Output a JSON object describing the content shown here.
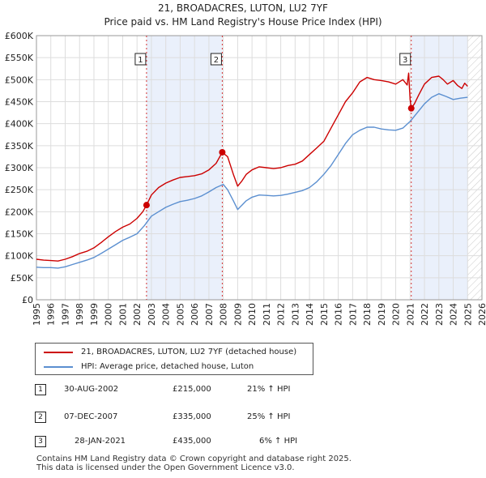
{
  "chart_data": {
    "type": "line",
    "title": "21, BROADACRES, LUTON, LU2 7YF",
    "subtitle": "Price paid vs. HM Land Registry's House Price Index (HPI)",
    "xlabel": "",
    "ylabel": "",
    "xlim": [
      1995,
      2026
    ],
    "ylim": [
      0,
      600000
    ],
    "x_ticks": [
      1995,
      1996,
      1997,
      1998,
      1999,
      2000,
      2001,
      2002,
      2003,
      2004,
      2005,
      2006,
      2007,
      2008,
      2009,
      2010,
      2011,
      2012,
      2013,
      2014,
      2015,
      2016,
      2017,
      2018,
      2019,
      2020,
      2021,
      2022,
      2023,
      2024,
      2025,
      2026
    ],
    "y_ticks": [
      0,
      50000,
      100000,
      150000,
      200000,
      250000,
      300000,
      350000,
      400000,
      450000,
      500000,
      550000,
      600000
    ],
    "y_tick_labels": [
      "£0",
      "£50K",
      "£100K",
      "£150K",
      "£200K",
      "£250K",
      "£300K",
      "£350K",
      "£400K",
      "£450K",
      "£500K",
      "£550K",
      "£600K"
    ],
    "shaded_regions": [
      [
        2002.66,
        2007.93
      ],
      [
        2021.08,
        2025.0
      ]
    ],
    "future_hatch_from": 2025.0,
    "series": [
      {
        "name": "21, BROADACRES, LUTON, LU2 7YF (detached house)",
        "color": "#cc0000",
        "x": [
          1995.0,
          1995.5,
          1996.0,
          1996.5,
          1997.0,
          1997.5,
          1998.0,
          1998.5,
          1999.0,
          1999.5,
          2000.0,
          2000.5,
          2001.0,
          2001.5,
          2002.0,
          2002.4,
          2002.66,
          2003.0,
          2003.5,
          2004.0,
          2004.5,
          2005.0,
          2005.5,
          2006.0,
          2006.5,
          2007.0,
          2007.5,
          2007.93,
          2008.3,
          2008.7,
          2009.0,
          2009.3,
          2009.6,
          2010.0,
          2010.5,
          2011.0,
          2011.5,
          2012.0,
          2012.5,
          2013.0,
          2013.5,
          2014.0,
          2014.5,
          2015.0,
          2015.5,
          2016.0,
          2016.5,
          2017.0,
          2017.5,
          2018.0,
          2018.5,
          2019.0,
          2019.5,
          2020.0,
          2020.5,
          2020.8,
          2020.9,
          2021.0,
          2021.08,
          2021.3,
          2021.6,
          2022.0,
          2022.5,
          2023.0,
          2023.3,
          2023.6,
          2024.0,
          2024.3,
          2024.6,
          2024.8,
          2025.0
        ],
        "values": [
          92000,
          90000,
          89000,
          88000,
          92000,
          98000,
          105000,
          110000,
          118000,
          130000,
          143000,
          155000,
          165000,
          172000,
          185000,
          200000,
          215000,
          238000,
          255000,
          265000,
          272000,
          278000,
          280000,
          282000,
          286000,
          295000,
          310000,
          335000,
          325000,
          285000,
          258000,
          270000,
          285000,
          295000,
          302000,
          300000,
          298000,
          300000,
          305000,
          308000,
          315000,
          330000,
          345000,
          360000,
          390000,
          420000,
          450000,
          470000,
          495000,
          505000,
          500000,
          498000,
          495000,
          490000,
          500000,
          488000,
          515000,
          455000,
          435000,
          445000,
          465000,
          490000,
          505000,
          508000,
          500000,
          490000,
          498000,
          487000,
          480000,
          492000,
          485000
        ],
        "markers": [
          {
            "x": 2002.66,
            "value": 215000,
            "label": "1"
          },
          {
            "x": 2007.93,
            "value": 335000,
            "label": "2"
          },
          {
            "x": 2021.08,
            "value": 435000,
            "label": "3"
          }
        ]
      },
      {
        "name": "HPI: Average price, detached house, Luton",
        "color": "#5b8fd0",
        "x": [
          1995.0,
          1995.5,
          1996.0,
          1996.5,
          1997.0,
          1997.5,
          1998.0,
          1998.5,
          1999.0,
          1999.5,
          2000.0,
          2000.5,
          2001.0,
          2001.5,
          2002.0,
          2002.5,
          2003.0,
          2003.5,
          2004.0,
          2004.5,
          2005.0,
          2005.5,
          2006.0,
          2006.5,
          2007.0,
          2007.5,
          2008.0,
          2008.3,
          2008.7,
          2009.0,
          2009.3,
          2009.6,
          2010.0,
          2010.5,
          2011.0,
          2011.5,
          2012.0,
          2012.5,
          2013.0,
          2013.5,
          2014.0,
          2014.5,
          2015.0,
          2015.5,
          2016.0,
          2016.5,
          2017.0,
          2017.5,
          2018.0,
          2018.5,
          2019.0,
          2019.5,
          2020.0,
          2020.5,
          2021.0,
          2021.5,
          2022.0,
          2022.5,
          2023.0,
          2023.5,
          2024.0,
          2024.5,
          2025.0
        ],
        "values": [
          74000,
          73000,
          73000,
          72000,
          75000,
          80000,
          85000,
          90000,
          96000,
          105000,
          115000,
          125000,
          135000,
          142000,
          150000,
          168000,
          190000,
          200000,
          210000,
          217000,
          223000,
          226000,
          230000,
          236000,
          245000,
          255000,
          262000,
          250000,
          225000,
          205000,
          215000,
          225000,
          233000,
          238000,
          237000,
          236000,
          237000,
          240000,
          244000,
          248000,
          255000,
          268000,
          285000,
          305000,
          330000,
          355000,
          375000,
          385000,
          392000,
          392000,
          388000,
          386000,
          385000,
          390000,
          405000,
          425000,
          445000,
          460000,
          468000,
          462000,
          455000,
          458000,
          460000
        ]
      }
    ]
  },
  "legend": [
    {
      "label": "21, BROADACRES, LUTON, LU2 7YF (detached house)",
      "color": "#cc0000"
    },
    {
      "label": "HPI: Average price, detached house, Luton",
      "color": "#5b8fd0"
    }
  ],
  "sales": [
    {
      "num": "1",
      "date": "30-AUG-2002",
      "price": "£215,000",
      "hpi": "21% ↑ HPI"
    },
    {
      "num": "2",
      "date": "07-DEC-2007",
      "price": "£335,000",
      "hpi": "25% ↑ HPI"
    },
    {
      "num": "3",
      "date": "28-JAN-2021",
      "price": "£435,000",
      "hpi": "6% ↑ HPI"
    }
  ],
  "footer": {
    "line1": "Contains HM Land Registry data © Crown copyright and database right 2025.",
    "line2": "This data is licensed under the Open Government Licence v3.0."
  }
}
